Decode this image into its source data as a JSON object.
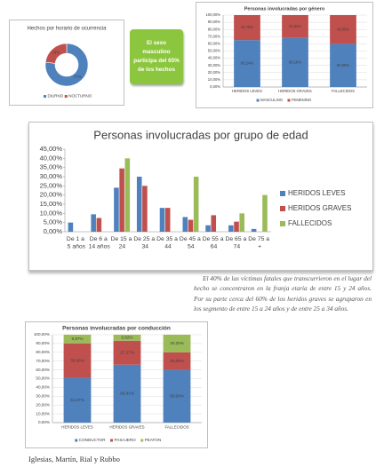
{
  "chart_data": [
    {
      "type": "pie",
      "donut": true,
      "title": "Hechos por horario de ocurrencia",
      "categories": [
        "DIURNO",
        "NOCTURNO"
      ],
      "values": [
        77,
        23
      ],
      "value_labels": [
        "77%",
        "23%"
      ],
      "colors": [
        "#4f81bd",
        "#c0504d"
      ],
      "legend": "bottom"
    },
    {
      "type": "bar",
      "stacked": true,
      "title": "Personas involucradas por género",
      "categories": [
        "HERIDOS LEVES",
        "HERIDOS GRAVES",
        "FALLECIDOS"
      ],
      "series": [
        {
          "name": "MASCULINO",
          "color": "#4f81bd",
          "values": [
            65.24,
            68.18,
            60.0
          ],
          "value_labels": [
            "65,24%",
            "68,18%",
            "60,00%"
          ]
        },
        {
          "name": "FEMENINO",
          "color": "#c0504d",
          "values": [
            34.76,
            31.82,
            40.0
          ],
          "value_labels": [
            "34,76%",
            "31,82%",
            "40,00%"
          ]
        }
      ],
      "ylim": [
        0,
        100
      ],
      "yticks": [
        {
          "value": 0,
          "label": "0,00%"
        },
        {
          "value": 10,
          "label": "10,00%"
        },
        {
          "value": 20,
          "label": "20,00%"
        },
        {
          "value": 30,
          "label": "30,00%"
        },
        {
          "value": 40,
          "label": "40,00%"
        },
        {
          "value": 50,
          "label": "50,00%"
        },
        {
          "value": 60,
          "label": "60,00%"
        },
        {
          "value": 70,
          "label": "70,00%"
        },
        {
          "value": 80,
          "label": "80,00%"
        },
        {
          "value": 90,
          "label": "90,00%"
        },
        {
          "value": 100,
          "label": "100,00%"
        }
      ],
      "grid": true,
      "legend": "bottom"
    },
    {
      "type": "bar",
      "stacked": false,
      "title": "Personas involucradas por grupo de edad",
      "categories": [
        "De 1 a 5 años",
        "De 6 a 14 años",
        "De 15 a 24",
        "De 25 a 34",
        "De 35 a 44",
        "De 45 a 54",
        "De 55 a 64",
        "De 65 a 74",
        "De 75 a +"
      ],
      "series": [
        {
          "name": "HERIDOS LEVES",
          "color": "#4f81bd",
          "values": [
            5,
            9.5,
            24,
            30,
            13,
            8,
            3.5,
            3.5,
            1.5
          ]
        },
        {
          "name": "HERIDOS GRAVES",
          "color": "#c0504d",
          "values": [
            0,
            7.5,
            34.5,
            25,
            13,
            6.5,
            9,
            5.5,
            0
          ]
        },
        {
          "name": "FALLECIDOS",
          "color": "#9bbb59",
          "values": [
            0,
            0,
            40,
            0,
            0,
            30,
            0,
            10,
            20
          ]
        }
      ],
      "ylim": [
        0,
        45
      ],
      "yticks": [
        {
          "value": 0,
          "label": "0,00%"
        },
        {
          "value": 5,
          "label": "5,00%"
        },
        {
          "value": 10,
          "label": "10,00%"
        },
        {
          "value": 15,
          "label": "15,00%"
        },
        {
          "value": 20,
          "label": "20,00%"
        },
        {
          "value": 25,
          "label": "25,00%"
        },
        {
          "value": 30,
          "label": "30,00%"
        },
        {
          "value": 35,
          "label": "35,00%"
        },
        {
          "value": 40,
          "label": "40,00%"
        },
        {
          "value": 45,
          "label": "45,00%"
        }
      ],
      "grid": false,
      "legend": "right"
    },
    {
      "type": "bar",
      "stacked": true,
      "title": "Personas involucradas por conducción",
      "categories": [
        "HERIDOS LEVES",
        "HERIDOS GRAVES",
        "FALLECIDOS"
      ],
      "series": [
        {
          "name": "CONDUCTOR",
          "color": "#4f81bd",
          "values": [
            51.07,
            65.91,
            60.0
          ],
          "value_labels": [
            "51,07%",
            "65,91%",
            "60,00%"
          ]
        },
        {
          "name": "PASAJERO",
          "color": "#c0504d",
          "values": [
            39.06,
            27.27,
            20.0
          ],
          "value_labels": [
            "39,06%",
            "27,27%",
            "20,00%"
          ]
        },
        {
          "name": "PEATON",
          "color": "#9bbb59",
          "values": [
            9.87,
            6.82,
            20.0
          ],
          "value_labels": [
            "9,87%",
            "6,82%",
            "20,00%"
          ]
        }
      ],
      "ylim": [
        0,
        100
      ],
      "yticks": [
        {
          "value": 0,
          "label": "0,00%"
        },
        {
          "value": 10,
          "label": "10,00%"
        },
        {
          "value": 20,
          "label": "20,00%"
        },
        {
          "value": 30,
          "label": "30,00%"
        },
        {
          "value": 40,
          "label": "40,00%"
        },
        {
          "value": 50,
          "label": "50,00%"
        },
        {
          "value": 60,
          "label": "60,00%"
        },
        {
          "value": 70,
          "label": "70,00%"
        },
        {
          "value": 80,
          "label": "80,00%"
        },
        {
          "value": 90,
          "label": "90,00%"
        },
        {
          "value": 100,
          "label": "100,00%"
        }
      ],
      "grid": true,
      "legend": "bottom"
    }
  ],
  "callout": "El sexo masculino participa del 65% de los hechos",
  "paragraph": "El 40% de las víctimas fatales que transcurrieron en el lugar del hecho se concentraron en la franja etaria de entre 15 y 24 años. Por su parte cerca del 60% de los heridos graves se agruparon en los segmento de entre 15 a 24 años y de entre 25 a 34 años.",
  "caption": "Iglesias, Martín, Rial y Rubbo"
}
